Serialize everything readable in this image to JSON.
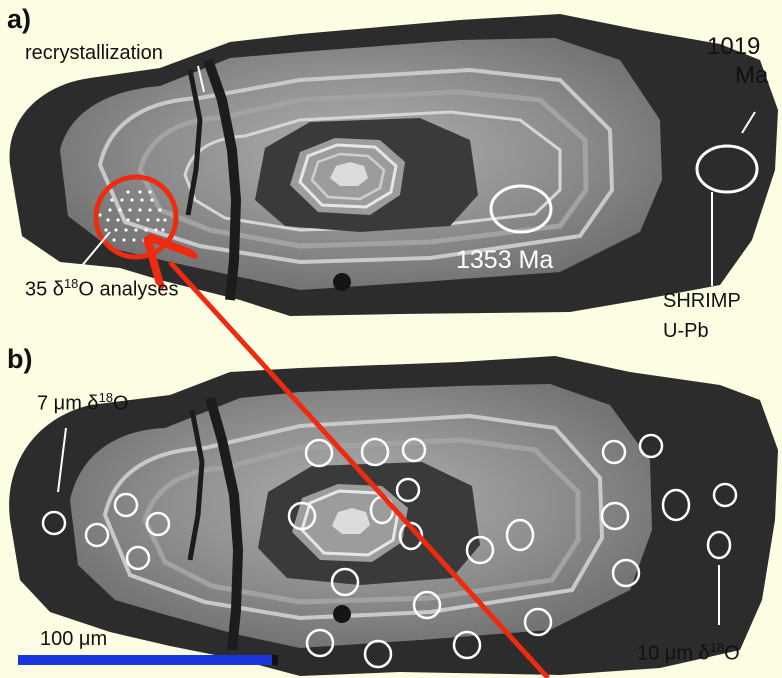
{
  "panel_a": {
    "label": "a)",
    "recrystallization": "recrystallization",
    "age_rim": "1019",
    "age_rim_unit": "Ma",
    "age_core": "1353 Ma",
    "analyses_prefix": "35 δ",
    "analyses_sup": "18",
    "analyses_suffix": "O analyses",
    "shrimp_1": "SHRIMP",
    "shrimp_2": "U-Pb"
  },
  "panel_b": {
    "label": "b)",
    "spot7_prefix": "7 μm δ",
    "spot7_sup": "18",
    "spot7_suffix": "O",
    "spot10_prefix": "10 μm δ",
    "spot10_sup": "18",
    "spot10_suffix": "O"
  },
  "scale_bar": {
    "label": "100 μm",
    "color": "#1a35e0"
  },
  "colors": {
    "background": "#fdfde4",
    "arrow": "#ee2a10",
    "rim": "#2b2b2b",
    "core": "#8a8a8a"
  }
}
